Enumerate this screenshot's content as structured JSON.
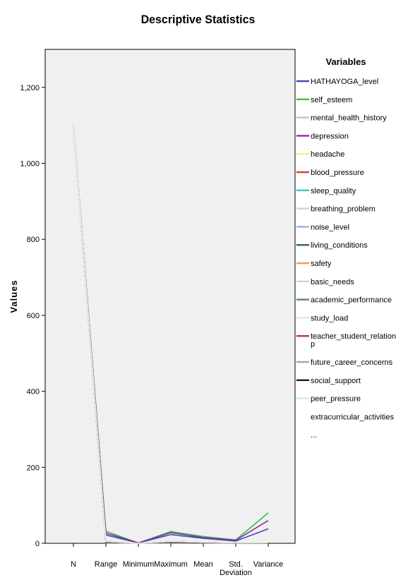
{
  "chart_data": {
    "type": "line",
    "title": "Descriptive Statistics",
    "xlabel": "",
    "ylabel": "Values",
    "ylim": [
      0,
      1300
    ],
    "yticks": [
      0,
      200,
      400,
      600,
      800,
      1000,
      1200
    ],
    "ytick_labels": [
      "0",
      "200",
      "400",
      "600",
      "800",
      "1,000",
      "1,200"
    ],
    "categories": [
      "N",
      "Range",
      "Minimum",
      "Maximum",
      "Mean",
      "Std. Deviation",
      "Variance"
    ],
    "category_labels": [
      [
        "N"
      ],
      [
        "Range"
      ],
      [
        "Minimum"
      ],
      [
        "Maximum"
      ],
      [
        "Mean"
      ],
      [
        "Std.",
        "Deviation"
      ],
      [
        "Variance"
      ]
    ],
    "legend_title": "Variables",
    "legend_placement": "right",
    "background": "#f0f0f0",
    "series": [
      {
        "name": "HATHAYOGA_level",
        "color": "#3b4cc0",
        "values": [
          1100,
          22,
          1,
          23,
          13,
          6,
          38
        ]
      },
      {
        "name": "self_esteem",
        "color": "#2fc24a",
        "values": [
          1100,
          32,
          1,
          31,
          18,
          9,
          80
        ]
      },
      {
        "name": "mental_health_history",
        "color": "#c8c8a9",
        "values": [
          1100,
          1,
          0,
          1,
          1,
          0.5,
          0.3
        ]
      },
      {
        "name": "depression",
        "color": "#8a2aa0",
        "values": [
          1100,
          27,
          1,
          28,
          15,
          8,
          60
        ]
      },
      {
        "name": "headache",
        "color": "#f5f27a",
        "values": [
          1100,
          5,
          0,
          5,
          3,
          1.4,
          2
        ]
      },
      {
        "name": "blood_pressure",
        "color": "#e23b3b",
        "values": [
          1100,
          3,
          1,
          3,
          2,
          0.8,
          0.7
        ]
      },
      {
        "name": "sleep_quality",
        "color": "#39c6c6",
        "values": [
          1100,
          5,
          0,
          5,
          3,
          1.5,
          2.2
        ]
      },
      {
        "name": "breathing_problem",
        "color": "#cfcfcf",
        "values": [
          1100,
          5,
          0,
          5,
          3,
          1.4,
          2
        ]
      },
      {
        "name": "noise_level",
        "color": "#8fb3e0",
        "values": [
          1100,
          5,
          0,
          5,
          3,
          1.3,
          1.7
        ]
      },
      {
        "name": "living_conditions",
        "color": "#2e6b3f",
        "values": [
          1100,
          5,
          0,
          5,
          3,
          1.1,
          1.2
        ]
      },
      {
        "name": "safety",
        "color": "#f2a23a",
        "values": [
          1100,
          5,
          0,
          5,
          3,
          1.4,
          2
        ]
      },
      {
        "name": "basic_needs",
        "color": "#e3c6f0",
        "values": [
          1100,
          5,
          0,
          5,
          3,
          1.4,
          2
        ]
      },
      {
        "name": "academic_performance",
        "color": "#4f7f8a",
        "values": [
          1100,
          5,
          0,
          5,
          3,
          1.4,
          2
        ]
      },
      {
        "name": "study_load",
        "color": "#d9f0cf",
        "values": [
          1100,
          5,
          0,
          5,
          3,
          1.3,
          1.7
        ]
      },
      {
        "name": "teacher_student_relationship",
        "color": "#a8327a",
        "values": [
          1100,
          5,
          0,
          5,
          3,
          1.4,
          1.9
        ]
      },
      {
        "name": "future_career_concerns",
        "color": "#a5a5a5",
        "values": [
          1100,
          5,
          0,
          5,
          3,
          1.5,
          2.3
        ]
      },
      {
        "name": "social_support",
        "color": "#1a1a1a",
        "values": [
          1100,
          3,
          0,
          3,
          2,
          1,
          1.1
        ]
      },
      {
        "name": "peer_pressure",
        "color": "#c8eef0",
        "values": [
          1100,
          5,
          0,
          5,
          3,
          1.4,
          2
        ]
      },
      {
        "name": "extracurricular_activities",
        "color": "#f0f0f0",
        "values": [
          1100,
          5,
          0,
          5,
          3,
          1.5,
          2.1
        ]
      }
    ],
    "legend_entries": [
      {
        "lines": [
          "HATHAYOGA_level"
        ],
        "color": "#3b4cc0"
      },
      {
        "lines": [
          "self_esteem"
        ],
        "color": "#2fc24a"
      },
      {
        "lines": [
          "mental_health_history"
        ],
        "color": "#c8c8a9"
      },
      {
        "lines": [
          "depression"
        ],
        "color": "#8a2aa0"
      },
      {
        "lines": [
          "headache"
        ],
        "color": "#f5f27a"
      },
      {
        "lines": [
          "blood_pressure"
        ],
        "color": "#e23b3b"
      },
      {
        "lines": [
          "sleep_quality"
        ],
        "color": "#39c6c6"
      },
      {
        "lines": [
          "breathing_problem"
        ],
        "color": "#cfcfcf"
      },
      {
        "lines": [
          "noise_level"
        ],
        "color": "#8fb3e0"
      },
      {
        "lines": [
          "living_conditions"
        ],
        "color": "#2e6b3f"
      },
      {
        "lines": [
          "safety"
        ],
        "color": "#f2a23a"
      },
      {
        "lines": [
          "basic_needs"
        ],
        "color": "#e3c6f0"
      },
      {
        "lines": [
          "academic_performance"
        ],
        "color": "#4f7f8a"
      },
      {
        "lines": [
          "study_load"
        ],
        "color": "#d9f0cf"
      },
      {
        "lines": [
          "teacher_student_relationshi",
          "p"
        ],
        "color": "#a8327a"
      },
      {
        "lines": [
          "future_career_concerns"
        ],
        "color": "#a5a5a5"
      },
      {
        "lines": [
          "social_support"
        ],
        "color": "#1a1a1a"
      },
      {
        "lines": [
          "peer_pressure"
        ],
        "color": "#c8eef0"
      },
      {
        "lines": [
          "extracurricular_activities"
        ],
        "color": ""
      },
      {
        "lines": [
          "..."
        ],
        "color": ""
      }
    ]
  }
}
